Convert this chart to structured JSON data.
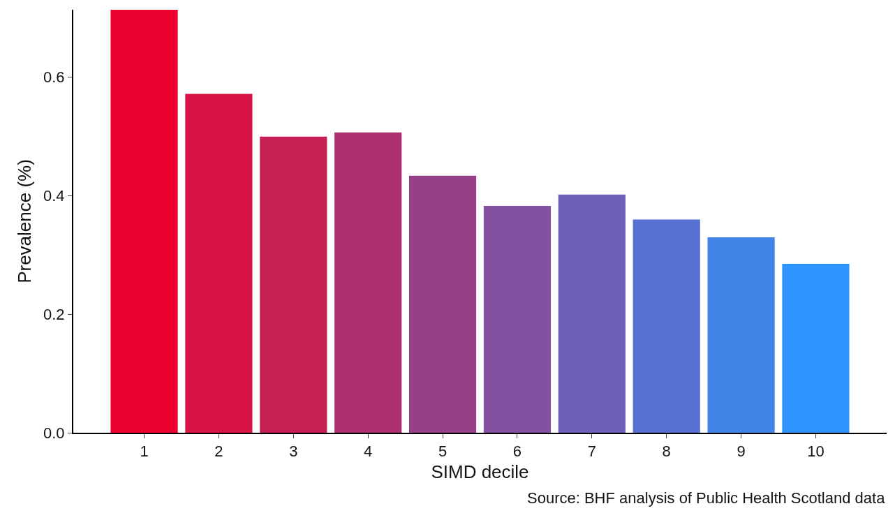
{
  "chart_data": {
    "type": "bar",
    "xlabel": "SIMD decile",
    "ylabel": "Prevalence (%)",
    "categories": [
      "1",
      "2",
      "3",
      "4",
      "5",
      "6",
      "7",
      "8",
      "9",
      "10"
    ],
    "values": [
      0.714,
      0.572,
      0.5,
      0.507,
      0.434,
      0.383,
      0.402,
      0.36,
      0.33,
      0.285
    ],
    "colors": [
      "#ec0030",
      "#d81444",
      "#c52054",
      "#ae2f6e",
      "#96408a",
      "#8350a2",
      "#6d60b8",
      "#5870d2",
      "#4284e8",
      "#2e95ff"
    ],
    "ylim": [
      0,
      0.714
    ],
    "yticks": [
      {
        "value": 0,
        "label": "0.0"
      },
      {
        "value": 0.2,
        "label": "0.2"
      },
      {
        "value": 0.4,
        "label": "0.4"
      },
      {
        "value": 0.6,
        "label": "0.6"
      }
    ],
    "legend": false,
    "annotations": [
      "Source: BHF analysis of Public Health Scotland data"
    ]
  }
}
